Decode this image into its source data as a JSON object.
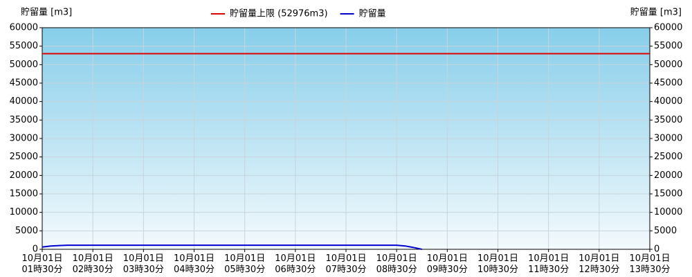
{
  "chart_data": {
    "type": "line",
    "y_label": "貯留量 [m3]",
    "y2_label": "貯留量 [m3]",
    "x": [
      1.5,
      1.67,
      1.83,
      2.0,
      2.5,
      3.0,
      3.5,
      4.0,
      4.5,
      5.0,
      5.5,
      6.0,
      6.5,
      7.0,
      7.5,
      8.0,
      8.5,
      8.67,
      8.83,
      9.0
    ],
    "series": [
      {
        "name": "貯留量上限 (52976m3)",
        "color": "#e00000",
        "values": [
          52976,
          52976,
          52976,
          52976,
          52976,
          52976,
          52976,
          52976,
          52976,
          52976,
          52976,
          52976,
          52976,
          52976,
          52976,
          52976,
          52976,
          52976,
          52976,
          52976
        ],
        "extend": true
      },
      {
        "name": "貯留量",
        "color": "#0000cc",
        "values": [
          600,
          900,
          1000,
          1100,
          1100,
          1100,
          1100,
          1100,
          1100,
          1100,
          1100,
          1100,
          1100,
          1100,
          1100,
          1100,
          1100,
          900,
          500,
          0
        ]
      }
    ],
    "xlim": [
      1.5,
      13.5
    ],
    "xticks": [
      {
        "value": 1.5,
        "label": "10月01日 01時30分"
      },
      {
        "value": 2.5,
        "label": "10月01日 02時30分"
      },
      {
        "value": 3.5,
        "label": "10月01日 03時30分"
      },
      {
        "value": 4.5,
        "label": "10月01日 04時30分"
      },
      {
        "value": 5.5,
        "label": "10月01日 05時30分"
      },
      {
        "value": 6.5,
        "label": "10月01日 06時30分"
      },
      {
        "value": 7.5,
        "label": "10月01日 07時30分"
      },
      {
        "value": 8.5,
        "label": "10月01日 08時30分"
      },
      {
        "value": 9.5,
        "label": "10月01日 09時30分"
      },
      {
        "value": 10.5,
        "label": "10月01日 10時30分"
      },
      {
        "value": 11.5,
        "label": "10月01日 11時30分"
      },
      {
        "value": 12.5,
        "label": "10月01日 12時30分"
      },
      {
        "value": 13.5,
        "label": "10月01日 13時30分"
      }
    ],
    "ylim": [
      0,
      60000
    ],
    "yticks": [
      0,
      5000,
      10000,
      15000,
      20000,
      25000,
      30000,
      35000,
      40000,
      45000,
      50000,
      55000,
      60000
    ],
    "y2lim": [
      0,
      60000
    ],
    "y2ticks": [
      0,
      5000,
      10000,
      15000,
      20000,
      25000,
      30000,
      35000,
      40000,
      45000,
      50000,
      55000,
      60000
    ],
    "grid": true
  }
}
